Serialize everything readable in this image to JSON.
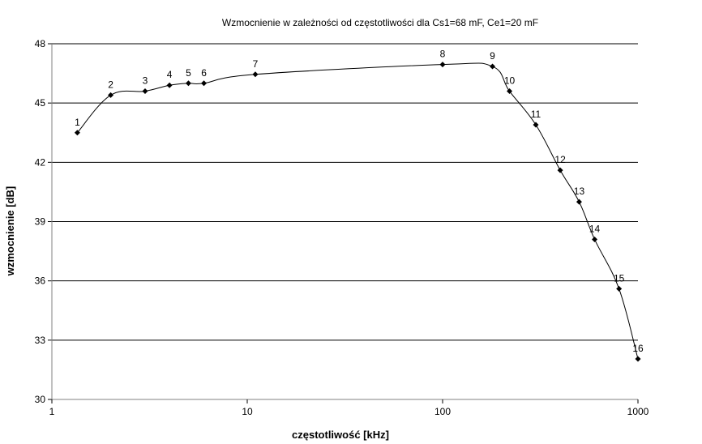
{
  "chart_data": {
    "type": "line",
    "title": "Wzmocnienie w zależności od częstotliwości dla Cs1=68 mF, Ce1=20 mF",
    "xlabel": "częstotliwość [kHz]",
    "ylabel": "wzmocnienie [dB]",
    "xscale": "log",
    "xlim": [
      1,
      1000
    ],
    "ylim": [
      30,
      48
    ],
    "xticks": [
      "1",
      "10",
      "100",
      "1000"
    ],
    "yticks": [
      "30",
      "33",
      "36",
      "39",
      "42",
      "45",
      "48"
    ],
    "grid": "horizontal",
    "legend": "none",
    "series": [
      {
        "marker": "diamond",
        "color": "#000000",
        "points": [
          {
            "label": "1",
            "x": 1.35,
            "y": 43.5
          },
          {
            "label": "2",
            "x": 2,
            "y": 45.4
          },
          {
            "label": "3",
            "x": 3,
            "y": 45.6
          },
          {
            "label": "4",
            "x": 4,
            "y": 45.9
          },
          {
            "label": "5",
            "x": 5,
            "y": 46.0
          },
          {
            "label": "6",
            "x": 6,
            "y": 46.0
          },
          {
            "label": "7",
            "x": 11,
            "y": 46.45
          },
          {
            "label": "8",
            "x": 100,
            "y": 46.95
          },
          {
            "label": "9",
            "x": 180,
            "y": 46.85
          },
          {
            "label": "10",
            "x": 220,
            "y": 45.6
          },
          {
            "label": "11",
            "x": 300,
            "y": 43.9
          },
          {
            "label": "12",
            "x": 400,
            "y": 41.6
          },
          {
            "label": "13",
            "x": 500,
            "y": 40.0
          },
          {
            "label": "14",
            "x": 600,
            "y": 38.1
          },
          {
            "label": "15",
            "x": 800,
            "y": 35.6
          },
          {
            "label": "16",
            "x": 1000,
            "y": 32.05
          }
        ]
      }
    ]
  }
}
